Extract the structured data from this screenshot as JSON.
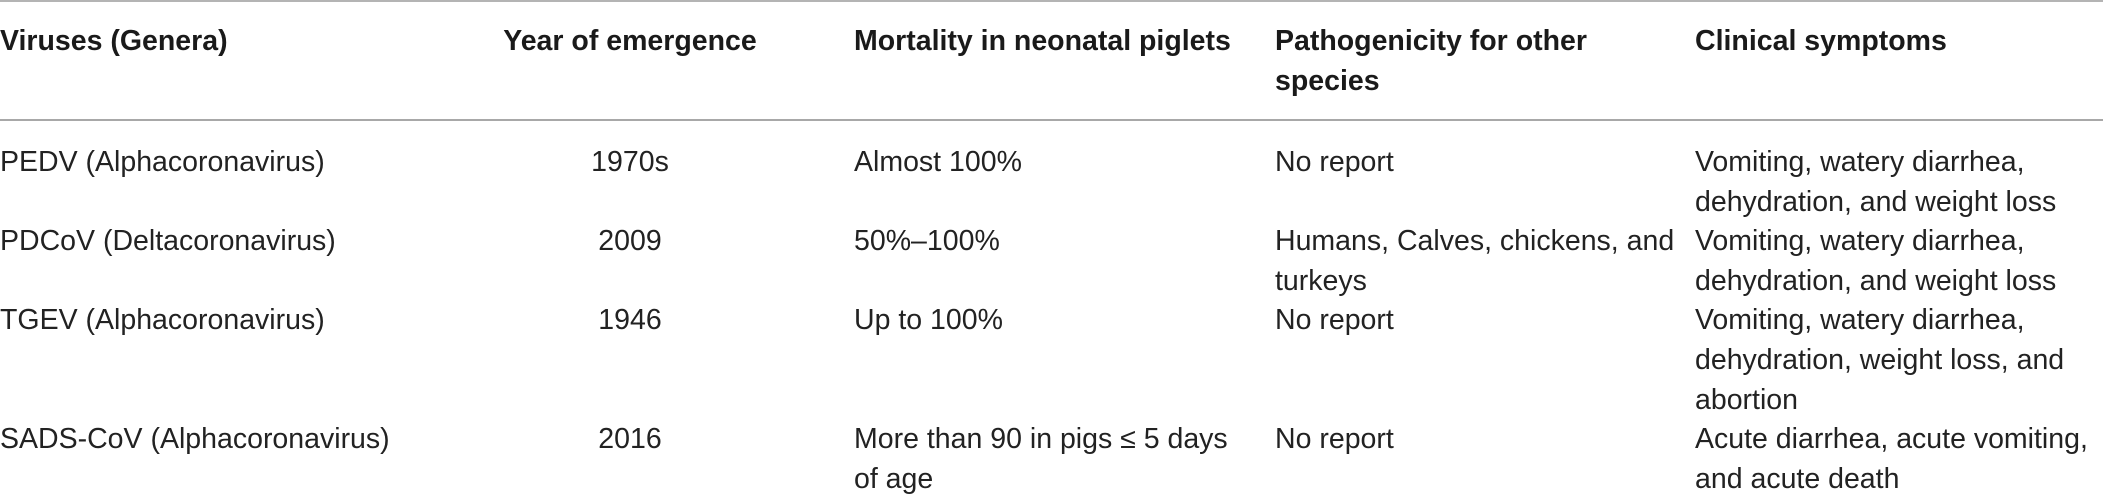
{
  "table": {
    "headers": [
      "Viruses (Genera)",
      "Year of emergence",
      "Mortality in neonatal piglets",
      "Pathogenicity for other species",
      "Clinical symptoms"
    ],
    "rows": [
      {
        "virus": "PEDV (Alphacoronavirus)",
        "year": "1970s",
        "mortality": "Almost 100%",
        "pathogenicity": "No report",
        "symptoms": "Vomiting, watery diarrhea, dehydration, and weight loss"
      },
      {
        "virus": "PDCoV (Deltacoronavirus)",
        "year": "2009",
        "mortality": "50%–100%",
        "pathogenicity": "Humans, Calves, chickens, and turkeys",
        "symptoms": "Vomiting, watery diarrhea, dehydration, and weight loss"
      },
      {
        "virus": "TGEV (Alphacoronavirus)",
        "year": "1946",
        "mortality": "Up to 100%",
        "pathogenicity": "No report",
        "symptoms": "Vomiting, watery diarrhea, dehydration, weight loss, and abortion"
      },
      {
        "virus": "SADS-CoV (Alphacoronavirus)",
        "year": "2016",
        "mortality": "More than 90 in pigs ≤ 5 days of age",
        "pathogenicity": "No report",
        "symptoms": "Acute diarrhea, acute vomiting, and acute death"
      }
    ]
  }
}
